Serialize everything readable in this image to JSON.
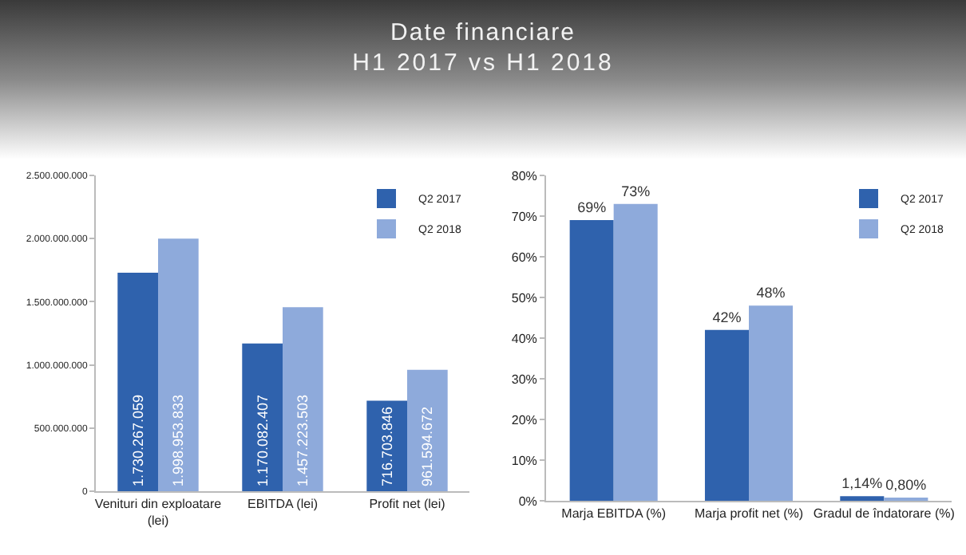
{
  "chart_data": [
    {
      "type": "bar",
      "title": "Date financiare",
      "subtitle": "H1 2017 vs H1 2018",
      "categories": [
        "Venituri din exploatare (lei)",
        "EBITDA (lei)",
        "Profit net (lei)"
      ],
      "series": [
        {
          "name": "Q2 2017",
          "color": "#2f62ad",
          "values": [
            1730267059,
            1170082407,
            716703846
          ],
          "value_labels": [
            "1.730.267.059",
            "1.170.082.407",
            "716.703.846"
          ]
        },
        {
          "name": "Q2 2018",
          "color": "#8eaadb",
          "values": [
            1998953833,
            1457223503,
            961594672
          ],
          "value_labels": [
            "1.998.953.833",
            "1.457.223.503",
            "961.594.672"
          ]
        }
      ],
      "ylim": [
        0,
        2500000000
      ],
      "yticks": [
        0,
        {
          "value": 500000000,
          "label": "500.000.000"
        },
        {
          "value": 1000000000,
          "label": "1.000.000.000"
        },
        {
          "value": 1500000000,
          "label": "1.500.000.000"
        },
        {
          "value": 2000000000,
          "label": "2.000.000.000"
        },
        {
          "value": 2500000000,
          "label": "2.500.000.000"
        }
      ],
      "grid": false,
      "legend": "top right"
    },
    {
      "type": "bar",
      "categories": [
        "Marja EBITDA (%)",
        "Marja profit net (%)",
        "Gradul de îndatorare (%)"
      ],
      "series": [
        {
          "name": "Q2 2017",
          "color": "#2f62ad",
          "values": [
            69,
            42,
            1.14
          ],
          "value_labels": [
            "69%",
            "42%",
            "1,14%"
          ]
        },
        {
          "name": "Q2 2018",
          "color": "#8eaadb",
          "values": [
            73,
            48,
            0.8
          ],
          "value_labels": [
            "73%",
            "48%",
            "0,80%"
          ]
        }
      ],
      "ylim": [
        0,
        80
      ],
      "yticks": [
        {
          "value": 0,
          "label": "0%"
        },
        {
          "value": 10,
          "label": "10%"
        },
        {
          "value": 20,
          "label": "20%"
        },
        {
          "value": 30,
          "label": "30%"
        },
        {
          "value": 40,
          "label": "40%"
        },
        {
          "value": 50,
          "label": "50%"
        },
        {
          "value": 60,
          "label": "60%"
        },
        {
          "value": 70,
          "label": "70%"
        },
        {
          "value": 80,
          "label": "80%"
        }
      ],
      "grid": false,
      "legend": "top right"
    }
  ]
}
